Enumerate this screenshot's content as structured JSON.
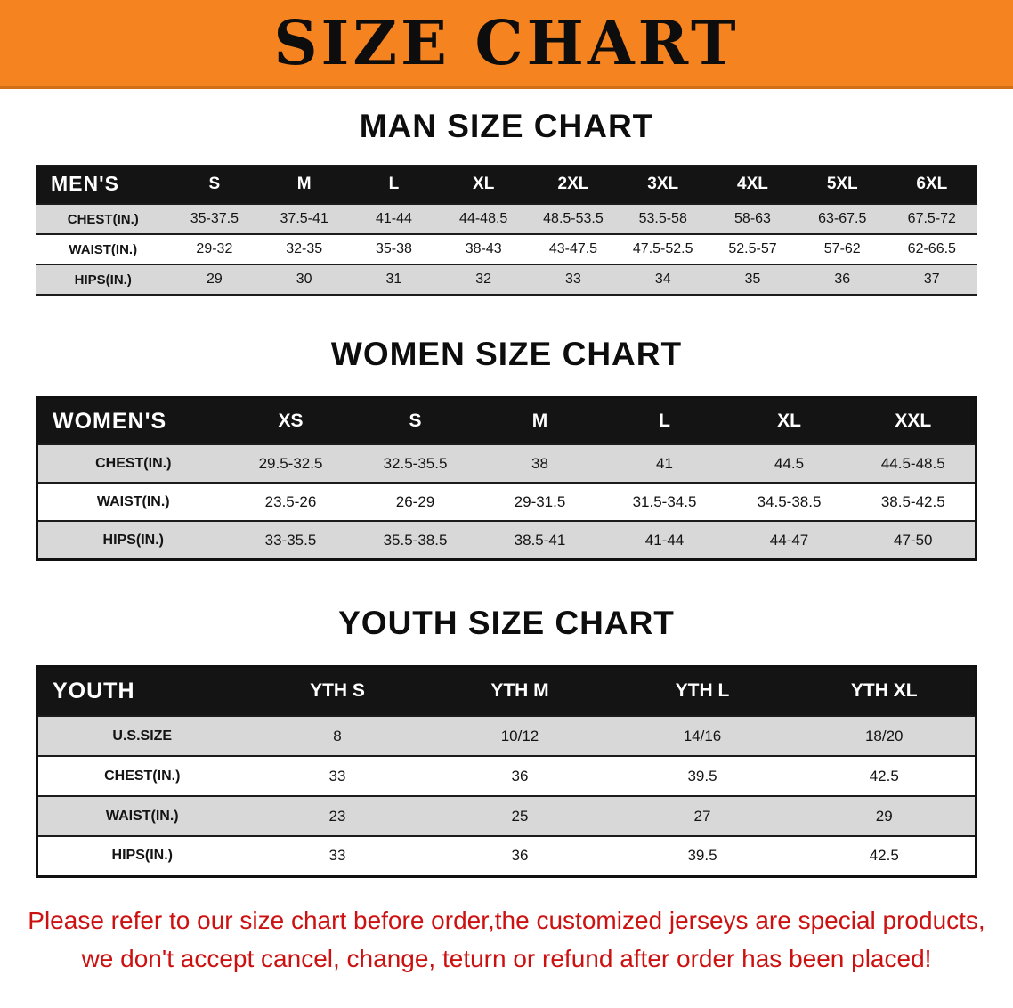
{
  "banner": {
    "title": "SIZE CHART",
    "bg_color": "#f5831f",
    "text_color": "#0d0d0d"
  },
  "sections": [
    {
      "title": "MAN SIZE CHART",
      "table": {
        "header_label": "MEN'S",
        "columns": [
          "S",
          "M",
          "L",
          "XL",
          "2XL",
          "3XL",
          "4XL",
          "5XL",
          "6XL"
        ],
        "rows": [
          {
            "label": "CHEST(IN.)",
            "values": [
              "35-37.5",
              "37.5-41",
              "41-44",
              "44-48.5",
              "48.5-53.5",
              "53.5-58",
              "58-63",
              "63-67.5",
              "67.5-72"
            ]
          },
          {
            "label": "WAIST(IN.)",
            "values": [
              "29-32",
              "32-35",
              "35-38",
              "38-43",
              "43-47.5",
              "47.5-52.5",
              "52.5-57",
              "57-62",
              "62-66.5"
            ]
          },
          {
            "label": "HIPS(IN.)",
            "values": [
              "29",
              "30",
              "31",
              "32",
              "33",
              "34",
              "35",
              "36",
              "37"
            ]
          }
        ]
      }
    },
    {
      "title": "WOMEN SIZE CHART",
      "table": {
        "header_label": "WOMEN'S",
        "columns": [
          "XS",
          "S",
          "M",
          "L",
          "XL",
          "XXL"
        ],
        "rows": [
          {
            "label": "CHEST(IN.)",
            "values": [
              "29.5-32.5",
              "32.5-35.5",
              "38",
              "41",
              "44.5",
              "44.5-48.5"
            ]
          },
          {
            "label": "WAIST(IN.)",
            "values": [
              "23.5-26",
              "26-29",
              "29-31.5",
              "31.5-34.5",
              "34.5-38.5",
              "38.5-42.5"
            ]
          },
          {
            "label": "HIPS(IN.)",
            "values": [
              "33-35.5",
              "35.5-38.5",
              "38.5-41",
              "41-44",
              "44-47",
              "47-50"
            ]
          }
        ]
      }
    },
    {
      "title": "YOUTH SIZE CHART",
      "table": {
        "header_label": "YOUTH",
        "columns": [
          "YTH S",
          "YTH M",
          "YTH L",
          "YTH XL"
        ],
        "rows": [
          {
            "label": "U.S.SIZE",
            "values": [
              "8",
              "10/12",
              "14/16",
              "18/20"
            ]
          },
          {
            "label": "CHEST(IN.)",
            "values": [
              "33",
              "36",
              "39.5",
              "42.5"
            ]
          },
          {
            "label": "WAIST(IN.)",
            "values": [
              "23",
              "25",
              "27",
              "29"
            ]
          },
          {
            "label": "HIPS(IN.)",
            "values": [
              "33",
              "36",
              "39.5",
              "42.5"
            ]
          }
        ]
      }
    }
  ],
  "notice": {
    "line1": "Please refer to our size chart before order,the customized jerseys are special products,",
    "line2": "we don't accept cancel, change, teturn or refund after order has been placed!",
    "text_color": "#cc1111"
  }
}
